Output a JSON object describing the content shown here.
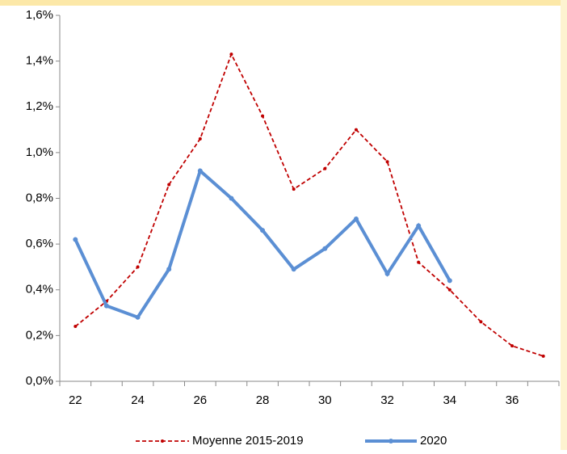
{
  "chart_data": {
    "type": "line",
    "categories": [
      "22",
      null,
      "24",
      null,
      "26",
      null,
      "28",
      null,
      "30",
      null,
      "32",
      null,
      "34",
      null,
      "36",
      null
    ],
    "series": [
      {
        "name": "Moyenne 2015-2019",
        "color": "#c00000",
        "dashed": true,
        "values": [
          0.24,
          0.35,
          0.5,
          0.86,
          1.06,
          1.43,
          1.16,
          0.84,
          0.93,
          1.1,
          0.96,
          0.52,
          0.4,
          0.26,
          0.155,
          0.11
        ]
      },
      {
        "name": "2020",
        "color": "#5b8fd4",
        "dashed": false,
        "values": [
          0.62,
          0.33,
          0.28,
          0.49,
          0.92,
          0.8,
          0.66,
          0.49,
          0.58,
          0.71,
          0.47,
          0.68,
          0.44,
          null,
          null,
          null
        ]
      }
    ],
    "ylim": [
      0,
      1.6
    ],
    "yticks": [
      {
        "value": 0,
        "label": "0,0%"
      },
      {
        "value": 0.2,
        "label": "0,2%"
      },
      {
        "value": 0.4,
        "label": "0,4%"
      },
      {
        "value": 0.6,
        "label": "0,6%"
      },
      {
        "value": 0.8,
        "label": "0,8%"
      },
      {
        "value": 1.0,
        "label": "1,0%"
      },
      {
        "value": 1.2,
        "label": "1,2%"
      },
      {
        "value": 1.4,
        "label": "1,4%"
      },
      {
        "value": 1.6,
        "label": "1,6%"
      }
    ],
    "grid": false,
    "legend": "bottom"
  }
}
